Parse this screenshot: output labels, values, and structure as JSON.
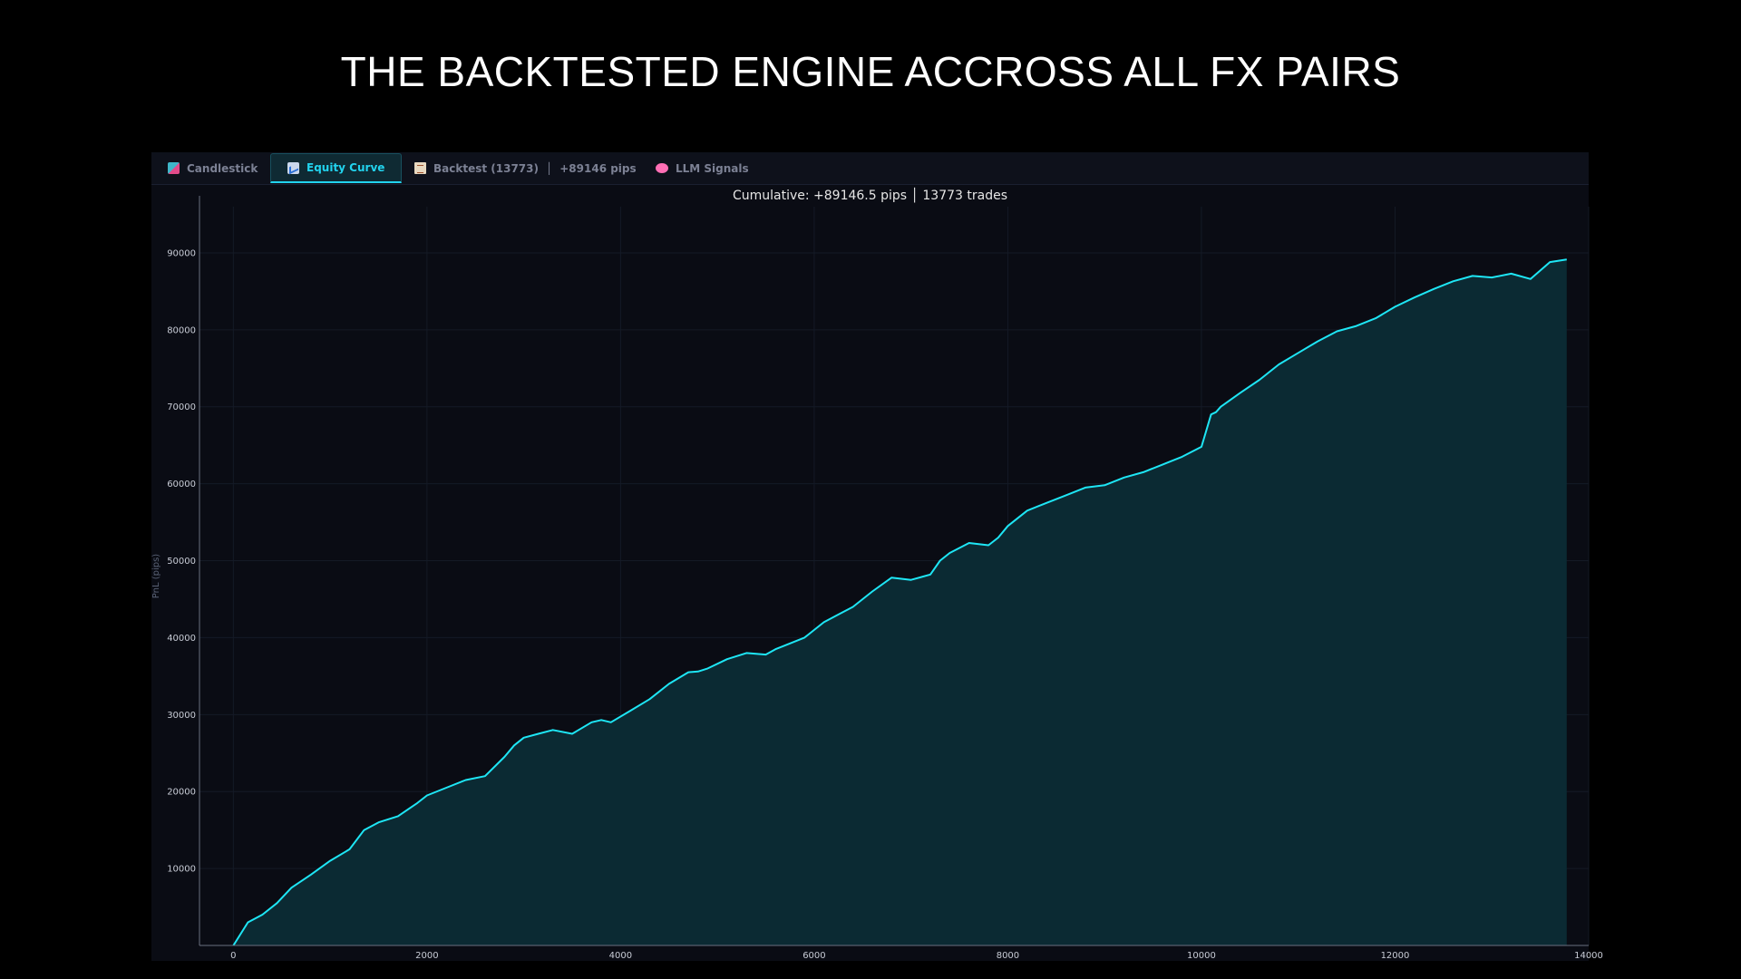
{
  "page": {
    "title": "THE BACKTESTED ENGINE ACCROSS ALL FX PAIRS"
  },
  "tabs": [
    {
      "label": "Candlestick",
      "icon": "candlestick-chart-icon",
      "active": false
    },
    {
      "label": "Equity Curve",
      "icon": "equity-chart-icon",
      "active": true
    },
    {
      "label": "Backtest (13773)",
      "extra": "+89146 pips",
      "icon": "clipboard-icon",
      "active": false
    },
    {
      "label": "LLM Signals",
      "icon": "brain-icon",
      "active": false
    }
  ],
  "colors": {
    "accent": "#22d3ee",
    "line": "#1ee6f5",
    "fill": "#0b2a33",
    "background": "#0a0c14",
    "axis_text": "#c8ccd6",
    "ylabel_text": "#5a6275"
  },
  "chart_data": {
    "type": "area",
    "title": "Cumulative: +89146.5 pips │ 13773 trades",
    "xlabel": "",
    "ylabel": "PnL (pips)",
    "xlim": [
      -350,
      14000
    ],
    "ylim": [
      0,
      96000
    ],
    "xticks": [
      0,
      2000,
      4000,
      6000,
      8000,
      10000,
      12000,
      14000
    ],
    "yticks": [
      10000,
      20000,
      30000,
      40000,
      50000,
      60000,
      70000,
      80000,
      90000
    ],
    "grid": true,
    "series": [
      {
        "x": [
          0,
          150,
          300,
          450,
          600,
          800,
          1000,
          1200,
          1350,
          1500,
          1700,
          1900,
          2000,
          2200,
          2400,
          2600,
          2800,
          2900,
          3000,
          3150,
          3300,
          3500,
          3700,
          3800,
          3900,
          4100,
          4300,
          4500,
          4700,
          4800,
          4900,
          5100,
          5300,
          5500,
          5600,
          5700,
          5900,
          6100,
          6250,
          6400,
          6600,
          6800,
          7000,
          7200,
          7300,
          7400,
          7600,
          7800,
          7900,
          8000,
          8200,
          8400,
          8600,
          8800,
          9000,
          9200,
          9400,
          9600,
          9800,
          10000,
          10100,
          10150,
          10200,
          10400,
          10600,
          10800,
          11000,
          11200,
          11400,
          11600,
          11800,
          12000,
          12200,
          12400,
          12600,
          12800,
          13000,
          13200,
          13400,
          13600,
          13773
        ],
        "values": [
          0,
          3000,
          4000,
          5500,
          7500,
          9200,
          11000,
          12500,
          15000,
          16000,
          16800,
          18500,
          19500,
          20500,
          21500,
          22000,
          24500,
          26000,
          27000,
          27500,
          28000,
          27500,
          29000,
          29300,
          29000,
          30500,
          32000,
          34000,
          35500,
          35600,
          36000,
          37200,
          38000,
          37800,
          38500,
          39000,
          40000,
          42000,
          43000,
          44000,
          46000,
          47800,
          47500,
          48200,
          50000,
          51000,
          52300,
          52000,
          53000,
          54500,
          56500,
          57500,
          58500,
          59500,
          59800,
          60800,
          61500,
          62500,
          63500,
          64800,
          69000,
          69300,
          70000,
          71800,
          73500,
          75500,
          77000,
          78500,
          79800,
          80500,
          81500,
          83000,
          84200,
          85300,
          86300,
          87000,
          86800,
          87300,
          86600,
          88800,
          89146
        ]
      }
    ]
  }
}
